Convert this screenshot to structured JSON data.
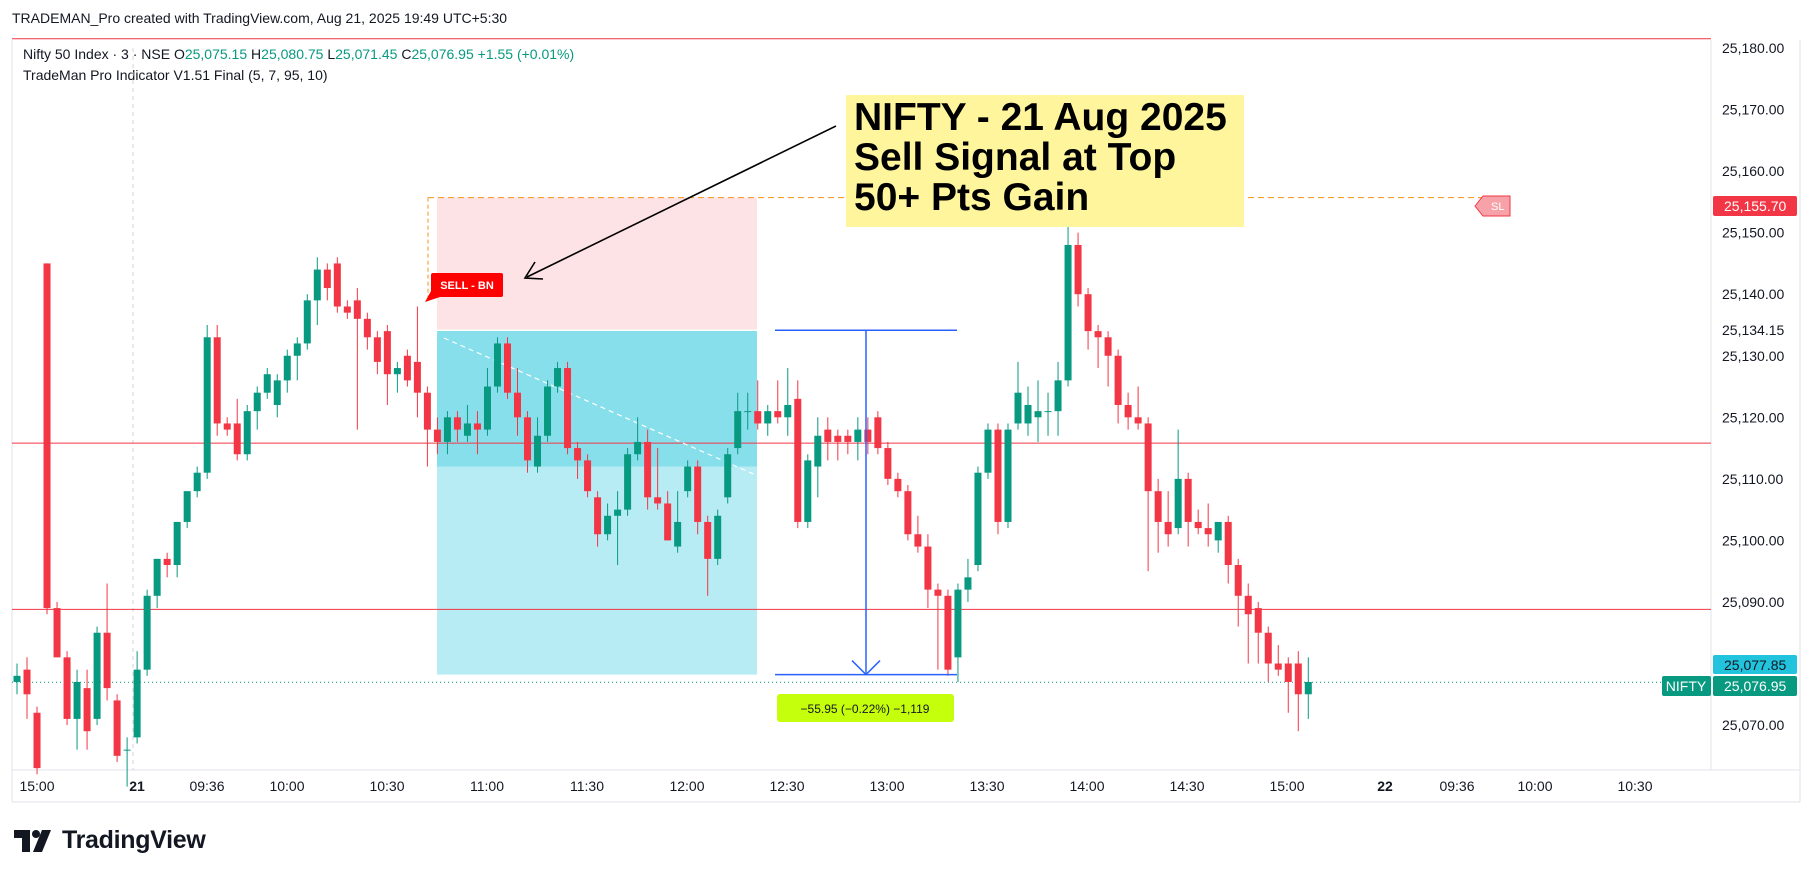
{
  "header": {
    "title": "TRADEMAN_Pro created with TradingView.com, Aug 21, 2025 19:49 UTC+5:30"
  },
  "legend": {
    "symbol": "Nifty 50 Index · 3 · NSE",
    "o_label": "O",
    "o_value": "25,075.15",
    "h_label": "H",
    "h_value": "25,080.75",
    "l_label": "L",
    "l_value": "25,071.45",
    "c_label": "C",
    "c_value": "25,076.95",
    "change": "+1.55 (+0.01%)",
    "indicator": "TradeMan Pro Indicator V1.51 Final (5, 7, 95, 10)"
  },
  "annotation": {
    "lines": [
      "NIFTY - 21 Aug 2025",
      "Sell Signal at Top",
      "50+ Pts Gain"
    ]
  },
  "signals": {
    "sell": "SELL - BN",
    "sl": "SL",
    "sl_price": "25,155.70"
  },
  "measure": {
    "label": "−55.95 (−0.22%) −1,119"
  },
  "price_axis": {
    "ticks": [
      "25,180.00",
      "25,170.00",
      "25,160.00",
      "25,150.00",
      "25,140.00",
      "25,134.15",
      "25,130.00",
      "25,120.00",
      "25,110.00",
      "25,100.00",
      "25,090.00",
      "25,070.00"
    ],
    "badge_high": "25,077.85",
    "badge_last": "25,076.95",
    "symbol_badge": "NIFTY"
  },
  "time_axis": {
    "labels": [
      "15:00",
      "21",
      "09:36",
      "10:00",
      "10:30",
      "11:00",
      "11:30",
      "12:00",
      "12:30",
      "13:00",
      "13:30",
      "14:00",
      "14:30",
      "15:00",
      "22",
      "09:36",
      "10:00",
      "10:30"
    ]
  },
  "brand": {
    "name": "TradingView"
  },
  "colors": {
    "up": "#089981",
    "down": "#f23645",
    "measure": "#2962ff",
    "annotation_bg": "#fff59d"
  },
  "chart_data": {
    "type": "candlestick",
    "symbol": "Nifty 50 Index",
    "interval": "3",
    "exchange": "NSE",
    "ylim": [
      25066,
      25184
    ],
    "horizontal_lines": [
      25181.5,
      25115.8,
      25088.8
    ],
    "position": {
      "entry": 25134.15,
      "stop": 25155.7,
      "target": 25078.2
    },
    "measure": {
      "from": 25134.15,
      "to": 25078.2
    },
    "candles": [
      {
        "t": "15:00",
        "o": 25077,
        "h": 25080,
        "l": 25075,
        "c": 25078
      },
      {
        "t": "15:03",
        "o": 25079,
        "h": 25081,
        "l": 25071,
        "c": 25075
      },
      {
        "t": "15:06",
        "o": 25072,
        "h": 25073,
        "l": 25062,
        "c": 25063
      },
      {
        "t": "09:15",
        "o": 25145,
        "h": 25145,
        "l": 25088,
        "c": 25089
      },
      {
        "t": "09:18",
        "o": 25089,
        "h": 25090,
        "l": 25081,
        "c": 25081
      },
      {
        "t": "09:21",
        "o": 25081,
        "h": 25082,
        "l": 25070,
        "c": 25071
      },
      {
        "t": "09:24",
        "o": 25071,
        "h": 25079,
        "l": 25066,
        "c": 25077
      },
      {
        "t": "09:27",
        "o": 25076,
        "h": 25079,
        "l": 25066,
        "c": 25069
      },
      {
        "t": "09:30",
        "o": 25071,
        "h": 25086,
        "l": 25070,
        "c": 25085
      },
      {
        "t": "09:33",
        "o": 25085,
        "h": 25093,
        "l": 25074,
        "c": 25076
      },
      {
        "t": "09:36",
        "o": 25074,
        "h": 25075,
        "l": 25064,
        "c": 25065
      },
      {
        "t": "09:39",
        "o": 25066,
        "h": 25068,
        "l": 25060,
        "c": 25066
      },
      {
        "t": "09:42",
        "o": 25068,
        "h": 25082,
        "l": 25067,
        "c": 25079
      },
      {
        "t": "09:45",
        "o": 25079,
        "h": 25092,
        "l": 25078,
        "c": 25091
      },
      {
        "t": "09:48",
        "o": 25091,
        "h": 25097,
        "l": 25089,
        "c": 25097
      },
      {
        "t": "09:51",
        "o": 25097,
        "h": 25098,
        "l": 25094,
        "c": 25096
      },
      {
        "t": "09:54",
        "o": 25096,
        "h": 25103,
        "l": 25094,
        "c": 25103
      },
      {
        "t": "09:57",
        "o": 25103,
        "h": 25108,
        "l": 25102,
        "c": 25108
      },
      {
        "t": "10:00",
        "o": 25108,
        "h": 25112,
        "l": 25107,
        "c": 25111
      },
      {
        "t": "10:03",
        "o": 25111,
        "h": 25135,
        "l": 25110,
        "c": 25133
      },
      {
        "t": "10:06",
        "o": 25133,
        "h": 25135,
        "l": 25117,
        "c": 25119
      },
      {
        "t": "10:09",
        "o": 25119,
        "h": 25120,
        "l": 25117,
        "c": 25118
      },
      {
        "t": "10:12",
        "o": 25119,
        "h": 25123,
        "l": 25113,
        "c": 25114
      },
      {
        "t": "10:15",
        "o": 25114,
        "h": 25122,
        "l": 25113,
        "c": 25121
      },
      {
        "t": "10:18",
        "o": 25121,
        "h": 25125,
        "l": 25118,
        "c": 25124
      },
      {
        "t": "10:21",
        "o": 25124,
        "h": 25128,
        "l": 25123,
        "c": 25127
      },
      {
        "t": "10:24",
        "o": 25122,
        "h": 25127,
        "l": 25120,
        "c": 25126
      },
      {
        "t": "10:27",
        "o": 25126,
        "h": 25131,
        "l": 25124,
        "c": 25130
      },
      {
        "t": "10:30",
        "o": 25130,
        "h": 25133,
        "l": 25126,
        "c": 25132
      },
      {
        "t": "10:33",
        "o": 25132,
        "h": 25140,
        "l": 25131,
        "c": 25139
      },
      {
        "t": "10:36",
        "o": 25139,
        "h": 25146,
        "l": 25135,
        "c": 25144
      },
      {
        "t": "10:39",
        "o": 25144,
        "h": 25145,
        "l": 25139,
        "c": 25141
      },
      {
        "t": "10:42",
        "o": 25145,
        "h": 25146,
        "l": 25137,
        "c": 25138
      },
      {
        "t": "10:45",
        "o": 25138,
        "h": 25139,
        "l": 25136,
        "c": 25137
      },
      {
        "t": "10:48",
        "o": 25139,
        "h": 25141,
        "l": 25118,
        "c": 25136
      },
      {
        "t": "10:51",
        "o": 25136,
        "h": 25137,
        "l": 25131,
        "c": 25133
      },
      {
        "t": "10:54",
        "o": 25133,
        "h": 25134,
        "l": 25127,
        "c": 25129
      },
      {
        "t": "10:57",
        "o": 25134,
        "h": 25135,
        "l": 25122,
        "c": 25127
      },
      {
        "t": "11:00",
        "o": 25127,
        "h": 25129,
        "l": 25124,
        "c": 25128
      },
      {
        "t": "11:03",
        "o": 25130,
        "h": 25131,
        "l": 25125,
        "c": 25126
      },
      {
        "t": "11:06",
        "o": 25129,
        "h": 25138,
        "l": 25120,
        "c": 25124
      },
      {
        "t": "11:09",
        "o": 25124,
        "h": 25125,
        "l": 25112,
        "c": 25118
      },
      {
        "t": "11:12",
        "o": 25118,
        "h": 25120,
        "l": 25114,
        "c": 25116
      },
      {
        "t": "11:15",
        "o": 25116,
        "h": 25121,
        "l": 25114,
        "c": 25120
      },
      {
        "t": "11:18",
        "o": 25120,
        "h": 25121,
        "l": 25116,
        "c": 25118
      },
      {
        "t": "11:21",
        "o": 25117,
        "h": 25122,
        "l": 25116,
        "c": 25119
      },
      {
        "t": "11:24",
        "o": 25119,
        "h": 25121,
        "l": 25114,
        "c": 25118
      },
      {
        "t": "11:27",
        "o": 25118,
        "h": 25128,
        "l": 25117,
        "c": 25125
      },
      {
        "t": "11:30",
        "o": 25125,
        "h": 25133,
        "l": 25124,
        "c": 25132
      },
      {
        "t": "11:33",
        "o": 25132,
        "h": 25133,
        "l": 25123,
        "c": 25124
      },
      {
        "t": "11:36",
        "o": 25124,
        "h": 25128,
        "l": 25117,
        "c": 25120
      },
      {
        "t": "11:39",
        "o": 25120,
        "h": 25121,
        "l": 25111,
        "c": 25113
      },
      {
        "t": "11:42",
        "o": 25112,
        "h": 25120,
        "l": 25111,
        "c": 25117
      },
      {
        "t": "11:45",
        "o": 25117,
        "h": 25126,
        "l": 25116,
        "c": 25125
      },
      {
        "t": "11:48",
        "o": 25125,
        "h": 25129,
        "l": 25124,
        "c": 25128
      },
      {
        "t": "11:51",
        "o": 25128,
        "h": 25129,
        "l": 25114,
        "c": 25115
      },
      {
        "t": "11:54",
        "o": 25115,
        "h": 25116,
        "l": 25110,
        "c": 25113
      },
      {
        "t": "11:57",
        "o": 25113,
        "h": 25114,
        "l": 25107,
        "c": 25108
      },
      {
        "t": "12:00",
        "o": 25107,
        "h": 25108,
        "l": 25099,
        "c": 25101
      },
      {
        "t": "12:03",
        "o": 25101,
        "h": 25106,
        "l": 25100,
        "c": 25104
      },
      {
        "t": "12:06",
        "o": 25104,
        "h": 25108,
        "l": 25096,
        "c": 25105
      },
      {
        "t": "12:09",
        "o": 25105,
        "h": 25115,
        "l": 25104,
        "c": 25114
      },
      {
        "t": "12:12",
        "o": 25114,
        "h": 25120,
        "l": 25113,
        "c": 25116
      },
      {
        "t": "12:15",
        "o": 25116,
        "h": 25118,
        "l": 25105,
        "c": 25107
      },
      {
        "t": "12:18",
        "o": 25107,
        "h": 25115,
        "l": 25105,
        "c": 25106
      },
      {
        "t": "12:21",
        "o": 25106,
        "h": 25108,
        "l": 25100,
        "c": 25100
      },
      {
        "t": "12:24",
        "o": 25099,
        "h": 25108,
        "l": 25098,
        "c": 25103
      },
      {
        "t": "12:27",
        "o": 25108,
        "h": 25113,
        "l": 25107,
        "c": 25112
      },
      {
        "t": "12:30",
        "o": 25112,
        "h": 25113,
        "l": 25101,
        "c": 25103
      },
      {
        "t": "12:33",
        "o": 25103,
        "h": 25104,
        "l": 25091,
        "c": 25097
      },
      {
        "t": "12:36",
        "o": 25097,
        "h": 25105,
        "l": 25096,
        "c": 25104
      },
      {
        "t": "12:39",
        "o": 25107,
        "h": 25115,
        "l": 25106,
        "c": 25114
      },
      {
        "t": "12:42",
        "o": 25115,
        "h": 25124,
        "l": 25114,
        "c": 25121
      },
      {
        "t": "12:45",
        "o": 25121,
        "h": 25124,
        "l": 25118,
        "c": 25121
      },
      {
        "t": "12:48",
        "o": 25121,
        "h": 25126,
        "l": 25118,
        "c": 25119
      },
      {
        "t": "12:51",
        "o": 25119,
        "h": 25122,
        "l": 25117,
        "c": 25121
      },
      {
        "t": "12:54",
        "o": 25121,
        "h": 25126,
        "l": 25119,
        "c": 25120
      },
      {
        "t": "12:57",
        "o": 25120,
        "h": 25128,
        "l": 25117,
        "c": 25122
      },
      {
        "t": "13:00",
        "o": 25123,
        "h": 25126,
        "l": 25102,
        "c": 25103
      },
      {
        "t": "13:03",
        "o": 25103,
        "h": 25114,
        "l": 25102,
        "c": 25113
      },
      {
        "t": "13:06",
        "o": 25112,
        "h": 25120,
        "l": 25107,
        "c": 25117
      },
      {
        "t": "13:09",
        "o": 25118,
        "h": 25120,
        "l": 25113,
        "c": 25116
      },
      {
        "t": "13:12",
        "o": 25117,
        "h": 25118,
        "l": 25113,
        "c": 25116
      },
      {
        "t": "13:15",
        "o": 25117,
        "h": 25118,
        "l": 25114,
        "c": 25116
      },
      {
        "t": "13:18",
        "o": 25116,
        "h": 25120,
        "l": 25113,
        "c": 25118
      },
      {
        "t": "13:21",
        "o": 25118,
        "h": 25120,
        "l": 25114,
        "c": 25116
      },
      {
        "t": "13:24",
        "o": 25120,
        "h": 25121,
        "l": 25114,
        "c": 25115
      },
      {
        "t": "13:27",
        "o": 25115,
        "h": 25116,
        "l": 25109,
        "c": 25110
      },
      {
        "t": "13:30",
        "o": 25110,
        "h": 25111,
        "l": 25107,
        "c": 25108
      },
      {
        "t": "13:33",
        "o": 25108,
        "h": 25109,
        "l": 25100,
        "c": 25101
      },
      {
        "t": "13:36",
        "o": 25101,
        "h": 25104,
        "l": 25098,
        "c": 25099
      },
      {
        "t": "13:39",
        "o": 25099,
        "h": 25101,
        "l": 25089,
        "c": 25092
      },
      {
        "t": "13:42",
        "o": 25092,
        "h": 25093,
        "l": 25079,
        "c": 25091
      },
      {
        "t": "13:45",
        "o": 25091,
        "h": 25092,
        "l": 25078,
        "c": 25079
      },
      {
        "t": "13:48",
        "o": 25081,
        "h": 25093,
        "l": 25077,
        "c": 25092
      },
      {
        "t": "13:51",
        "o": 25092,
        "h": 25097,
        "l": 25090,
        "c": 25094
      },
      {
        "t": "13:54",
        "o": 25096,
        "h": 25112,
        "l": 25095,
        "c": 25111
      },
      {
        "t": "13:57",
        "o": 25111,
        "h": 25119,
        "l": 25110,
        "c": 25118
      },
      {
        "t": "14:00",
        "o": 25118,
        "h": 25119,
        "l": 25101,
        "c": 25103
      },
      {
        "t": "14:03",
        "o": 25103,
        "h": 25119,
        "l": 25102,
        "c": 25118
      },
      {
        "t": "14:06",
        "o": 25119,
        "h": 25129,
        "l": 25118,
        "c": 25124
      },
      {
        "t": "14:09",
        "o": 25119,
        "h": 25125,
        "l": 25117,
        "c": 25122
      },
      {
        "t": "14:12",
        "o": 25120,
        "h": 25126,
        "l": 25116,
        "c": 25121
      },
      {
        "t": "14:15",
        "o": 25121,
        "h": 25124,
        "l": 25117,
        "c": 25121
      },
      {
        "t": "14:18",
        "o": 25121,
        "h": 25129,
        "l": 25117,
        "c": 25126
      },
      {
        "t": "14:21",
        "o": 25126,
        "h": 25153,
        "l": 25125,
        "c": 25148
      },
      {
        "t": "14:24",
        "o": 25148,
        "h": 25150,
        "l": 25138,
        "c": 25140
      },
      {
        "t": "14:27",
        "o": 25140,
        "h": 25141,
        "l": 25131,
        "c": 25134
      },
      {
        "t": "14:30",
        "o": 25134,
        "h": 25135,
        "l": 25128,
        "c": 25133
      },
      {
        "t": "14:33",
        "o": 25133,
        "h": 25134,
        "l": 25125,
        "c": 25130
      },
      {
        "t": "14:36",
        "o": 25130,
        "h": 25131,
        "l": 25119,
        "c": 25122
      },
      {
        "t": "14:39",
        "o": 25122,
        "h": 25124,
        "l": 25118,
        "c": 25120
      },
      {
        "t": "14:42",
        "o": 25120,
        "h": 25125,
        "l": 25118,
        "c": 25119
      },
      {
        "t": "14:45",
        "o": 25119,
        "h": 25120,
        "l": 25095,
        "c": 25108
      },
      {
        "t": "14:48",
        "o": 25108,
        "h": 25110,
        "l": 25098,
        "c": 25103
      },
      {
        "t": "14:51",
        "o": 25103,
        "h": 25108,
        "l": 25099,
        "c": 25101
      },
      {
        "t": "14:54",
        "o": 25102,
        "h": 25118,
        "l": 25101,
        "c": 25110
      },
      {
        "t": "14:57",
        "o": 25110,
        "h": 25111,
        "l": 25099,
        "c": 25103
      },
      {
        "t": "15:00",
        "o": 25103,
        "h": 25105,
        "l": 25101,
        "c": 25102
      },
      {
        "t": "15:03",
        "o": 25102,
        "h": 25106,
        "l": 25099,
        "c": 25101
      },
      {
        "t": "15:06",
        "o": 25100,
        "h": 25103,
        "l": 25098,
        "c": 25103
      },
      {
        "t": "15:09",
        "o": 25103,
        "h": 25104,
        "l": 25093,
        "c": 25096
      },
      {
        "t": "15:12",
        "o": 25096,
        "h": 25097,
        "l": 25086,
        "c": 25091
      },
      {
        "t": "15:15",
        "o": 25091,
        "h": 25093,
        "l": 25080,
        "c": 25088
      },
      {
        "t": "15:18",
        "o": 25089,
        "h": 25090,
        "l": 25080,
        "c": 25085
      },
      {
        "t": "15:21",
        "o": 25085,
        "h": 25086,
        "l": 25077,
        "c": 25080
      },
      {
        "t": "15:24",
        "o": 25080,
        "h": 25083,
        "l": 25078,
        "c": 25079
      },
      {
        "t": "15:27",
        "o": 25080,
        "h": 25081,
        "l": 25072,
        "c": 25077
      },
      {
        "t": "09:15",
        "o": 25080,
        "h": 25082,
        "l": 25069,
        "c": 25075
      },
      {
        "t": "09:18",
        "o": 25075,
        "h": 25081,
        "l": 25071,
        "c": 25077
      }
    ]
  }
}
